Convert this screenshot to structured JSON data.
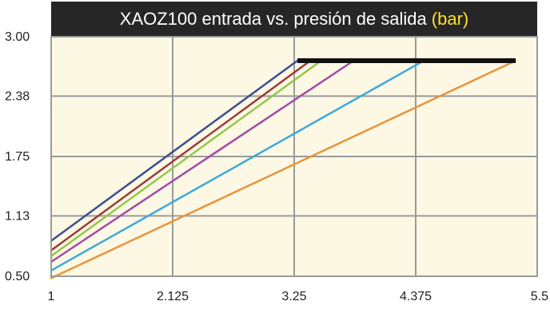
{
  "chart_data": {
    "type": "line",
    "title": "XAOZ100 entrada vs. presión de salida",
    "title_unit": "(bar)",
    "xlabel": "",
    "ylabel": "",
    "xlim": [
      1,
      5.5
    ],
    "ylim": [
      0.5,
      3.0
    ],
    "x_ticks": [
      "1",
      "2.125",
      "3.25",
      "4.375",
      "5.5"
    ],
    "y_ticks": [
      "0.50",
      "1.13",
      "1.75",
      "2.38",
      "3.00"
    ],
    "x_tick_values": [
      1,
      2.125,
      3.25,
      4.375,
      5.5
    ],
    "y_tick_values": [
      0.5,
      1.13,
      1.75,
      2.38,
      3.0
    ],
    "grid": true,
    "series": [
      {
        "color": "#3c4e93",
        "points": [
          [
            1,
            0.87
          ],
          [
            3.28,
            2.75
          ]
        ]
      },
      {
        "color": "#9c3c3c",
        "points": [
          [
            1,
            0.77
          ],
          [
            3.4,
            2.75
          ]
        ]
      },
      {
        "color": "#93c84a",
        "points": [
          [
            1,
            0.71
          ],
          [
            3.5,
            2.75
          ]
        ]
      },
      {
        "color": "#a44aa8",
        "points": [
          [
            1,
            0.65
          ],
          [
            3.8,
            2.75
          ]
        ]
      },
      {
        "color": "#3aa9df",
        "points": [
          [
            1,
            0.56
          ],
          [
            4.45,
            2.75
          ]
        ]
      },
      {
        "color": "#e8943a",
        "points": [
          [
            1,
            0.48
          ],
          [
            5.3,
            2.75
          ]
        ]
      }
    ],
    "reference_line": {
      "color": "#111111",
      "y": 2.75,
      "x_range": [
        3.28,
        5.3
      ]
    },
    "colors": {
      "plot_background": "#fcf8e4",
      "grid": "#9a9a9a",
      "title_background": "#262626",
      "title_text": "#ffffff",
      "title_unit": "#ffe12b"
    }
  }
}
